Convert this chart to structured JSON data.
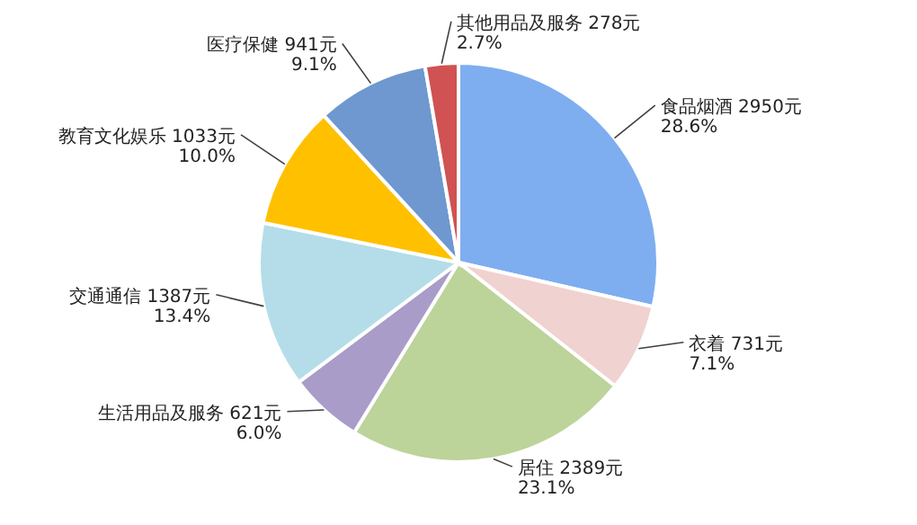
{
  "chart_data": {
    "type": "pie",
    "categories": [
      "食品烟酒",
      "衣着",
      "居住",
      "生活用品及服务",
      "交通通信",
      "教育文化娱乐",
      "医疗保健",
      "其他用品及服务"
    ],
    "values": [
      2950,
      731,
      2389,
      621,
      1387,
      1033,
      941,
      278
    ],
    "value_labels": [
      "2950元 28.6%",
      "731元 7.1%",
      "2389元 23.1%",
      "621元 6.0%",
      "1387元 13.4%",
      "1033元 10.0%",
      "941元 9.1%",
      "278元 2.7%"
    ],
    "colors": [
      "#7eaef0",
      "#f0d2d0",
      "#bcd39a",
      "#a99cc9",
      "#b4dde9",
      "#ffc000",
      "#6e98cf",
      "#d05252"
    ]
  }
}
